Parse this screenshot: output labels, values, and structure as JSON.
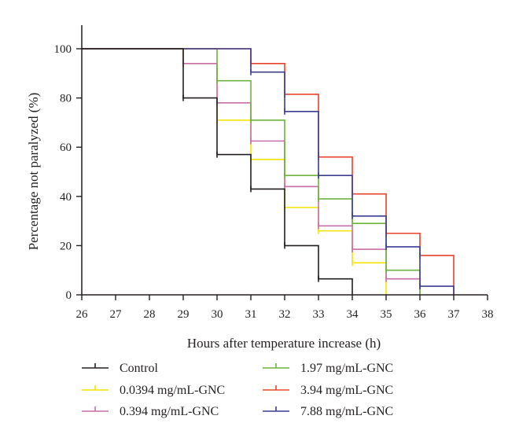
{
  "chart_data": {
    "type": "line",
    "step": true,
    "xlabel": "Hours after temperature increase (h)",
    "ylabel": "Percentage not paralyzed (%)",
    "xlim": [
      26,
      38
    ],
    "ylim": [
      0,
      100
    ],
    "xticks": [
      "26",
      "27",
      "28",
      "29",
      "30",
      "31",
      "32",
      "33",
      "34",
      "35",
      "36",
      "37",
      "38"
    ],
    "yticks": [
      "0",
      "20",
      "40",
      "60",
      "80",
      "100"
    ],
    "grid": false,
    "legend_position": "bottom",
    "series": [
      {
        "name": "Control",
        "color": "#231f20",
        "x": [
          26,
          29,
          30,
          31,
          32,
          33,
          34
        ],
        "y": [
          100,
          80,
          57,
          43,
          20,
          6.5,
          0
        ]
      },
      {
        "name": "0.0394 mg/mL-GNC",
        "color": "#f5e400",
        "x": [
          26,
          29,
          30,
          31,
          32,
          33,
          34,
          35
        ],
        "y": [
          100,
          94,
          71,
          55,
          35.5,
          26,
          13,
          0
        ]
      },
      {
        "name": "0.394 mg/mL-GNC",
        "color": "#c86ea8",
        "x": [
          26,
          29,
          30,
          31,
          32,
          33,
          34,
          35,
          36
        ],
        "y": [
          100,
          94,
          78,
          62.5,
          44,
          28,
          18.5,
          6.5,
          0
        ]
      },
      {
        "name": "1.97 mg/mL-GNC",
        "color": "#6db33f",
        "x": [
          26,
          30,
          31,
          32,
          33,
          34,
          35,
          36
        ],
        "y": [
          100,
          87,
          71,
          48.5,
          39,
          29,
          10,
          0
        ]
      },
      {
        "name": "3.94 mg/mL-GNC",
        "color": "#e8432b",
        "x": [
          26,
          31,
          32,
          33,
          34,
          35,
          36,
          37
        ],
        "y": [
          100,
          94,
          81.5,
          56,
          41,
          25,
          16,
          0
        ]
      },
      {
        "name": "7.88 mg/mL-GNC",
        "color": "#3c3d8f",
        "x": [
          26,
          31,
          32,
          33,
          34,
          35,
          36,
          37
        ],
        "y": [
          100,
          90.5,
          74.5,
          48.5,
          32,
          19.5,
          3.5,
          0
        ]
      }
    ]
  }
}
